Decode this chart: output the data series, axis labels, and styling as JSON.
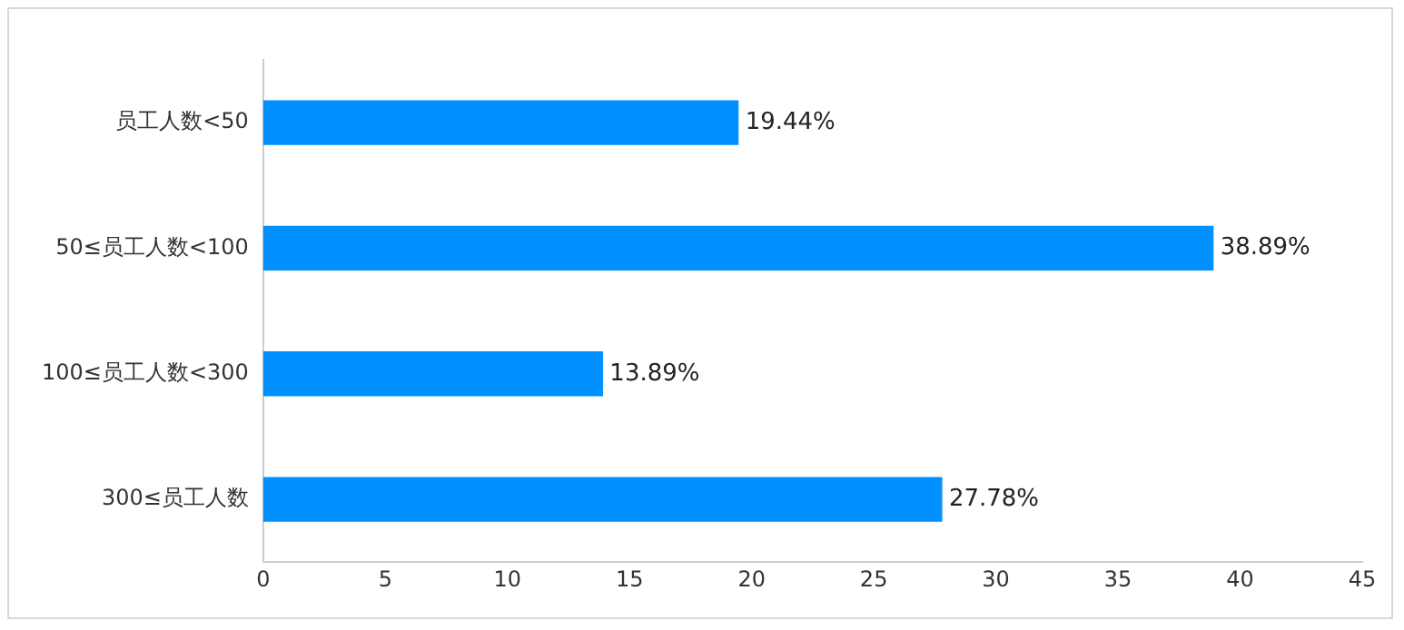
{
  "chart_data": {
    "type": "bar",
    "orientation": "horizontal",
    "categories": [
      "员工人数<50",
      "50≤员工人数<100",
      "100≤员工人数<300",
      "300≤员工人数"
    ],
    "values": [
      19.44,
      38.89,
      13.89,
      27.78
    ],
    "value_labels": [
      "19.44%",
      "38.89%",
      "13.89%",
      "27.78%"
    ],
    "color": "#0090ff",
    "xlim": [
      0,
      45
    ],
    "xticks": [
      0,
      5,
      10,
      15,
      20,
      25,
      30,
      35,
      40,
      45
    ],
    "grid": false,
    "legend": false
  }
}
